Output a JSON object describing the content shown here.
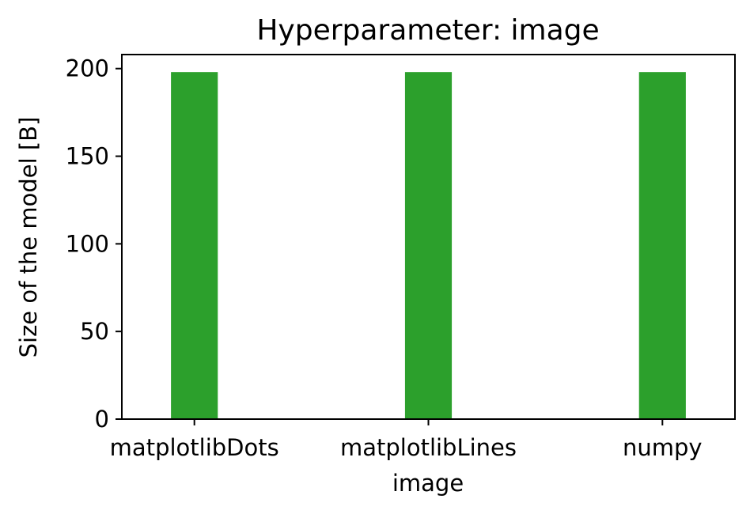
{
  "chart_data": {
    "type": "bar",
    "title": "Hyperparameter: image",
    "xlabel": "image",
    "ylabel": "Size of the model [B]",
    "categories": [
      "matplotlibDots",
      "matplotlibLines",
      "numpy"
    ],
    "series": [
      {
        "values": [
          198,
          198,
          198
        ],
        "color": "#2ca02c"
      }
    ],
    "ylim": [
      0,
      208
    ],
    "yticks": [
      0,
      50,
      100,
      150,
      200
    ],
    "grid": false,
    "legend": "none"
  }
}
